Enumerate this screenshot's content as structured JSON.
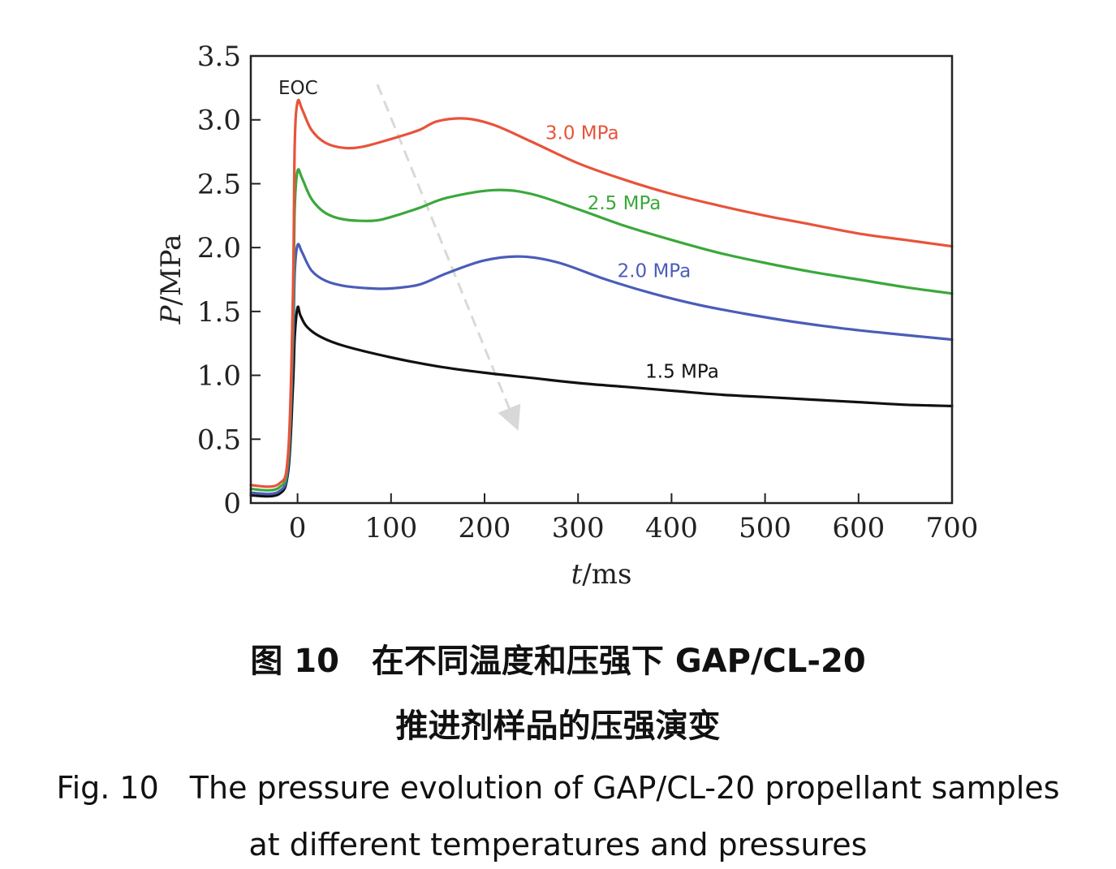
{
  "chart_data": {
    "type": "line",
    "xlabel_var": "t",
    "xlabel_unit": "/ms",
    "ylabel_var": "P",
    "ylabel_unit": "/MPa",
    "xlim": [
      -50,
      700
    ],
    "ylim": [
      0,
      3.5
    ],
    "x_ticks": [
      0,
      100,
      200,
      300,
      400,
      500,
      600,
      700
    ],
    "y_ticks": [
      0,
      0.5,
      1.0,
      1.5,
      2.0,
      2.5,
      3.0,
      3.5
    ],
    "x_tick_labels": [
      "0",
      "100",
      "200",
      "300",
      "400",
      "500",
      "600",
      "700"
    ],
    "y_tick_labels": [
      "0",
      "0.5",
      "1.0",
      "1.5",
      "2.0",
      "2.5",
      "3.0",
      "3.5"
    ],
    "annotation": "EOC",
    "series": [
      {
        "name": "3.0 MPa",
        "color": "#e8533a",
        "x": [
          -50,
          -20,
          -10,
          -5,
          -3,
          0,
          5,
          15,
          30,
          50,
          70,
          100,
          130,
          150,
          180,
          210,
          250,
          300,
          350,
          400,
          450,
          500,
          550,
          600,
          650,
          700
        ],
        "y": [
          0.14,
          0.15,
          0.4,
          1.6,
          2.8,
          3.14,
          3.08,
          2.92,
          2.82,
          2.78,
          2.79,
          2.85,
          2.92,
          2.99,
          3.01,
          2.96,
          2.83,
          2.66,
          2.53,
          2.42,
          2.33,
          2.25,
          2.18,
          2.11,
          2.06,
          2.01
        ]
      },
      {
        "name": "2.5 MPa",
        "color": "#3aa83a",
        "x": [
          -50,
          -20,
          -10,
          -5,
          -3,
          0,
          5,
          15,
          30,
          50,
          80,
          100,
          130,
          160,
          210,
          250,
          300,
          350,
          400,
          450,
          500,
          550,
          600,
          650,
          700
        ],
        "y": [
          0.11,
          0.12,
          0.35,
          1.4,
          2.3,
          2.6,
          2.54,
          2.38,
          2.27,
          2.22,
          2.21,
          2.24,
          2.31,
          2.39,
          2.45,
          2.42,
          2.3,
          2.17,
          2.06,
          1.96,
          1.88,
          1.81,
          1.75,
          1.69,
          1.64
        ]
      },
      {
        "name": "2.0 MPa",
        "color": "#4a5db8",
        "x": [
          -50,
          -20,
          -10,
          -5,
          -3,
          0,
          5,
          15,
          30,
          50,
          80,
          100,
          130,
          160,
          200,
          240,
          280,
          330,
          380,
          430,
          480,
          530,
          580,
          630,
          700
        ],
        "y": [
          0.08,
          0.09,
          0.3,
          1.2,
          1.8,
          2.02,
          1.96,
          1.82,
          1.74,
          1.7,
          1.68,
          1.68,
          1.71,
          1.8,
          1.9,
          1.93,
          1.88,
          1.75,
          1.64,
          1.55,
          1.48,
          1.42,
          1.37,
          1.33,
          1.28
        ]
      },
      {
        "name": "1.5 MPa",
        "color": "#111111",
        "x": [
          -50,
          -20,
          -10,
          -5,
          -3,
          0,
          3,
          10,
          25,
          50,
          100,
          150,
          200,
          250,
          300,
          350,
          400,
          450,
          500,
          550,
          600,
          650,
          700
        ],
        "y": [
          0.06,
          0.07,
          0.25,
          0.9,
          1.3,
          1.53,
          1.47,
          1.38,
          1.3,
          1.23,
          1.14,
          1.07,
          1.02,
          0.98,
          0.94,
          0.91,
          0.88,
          0.85,
          0.83,
          0.81,
          0.79,
          0.77,
          0.76
        ]
      }
    ]
  },
  "caption": {
    "zh_line1": "图 10　在不同温度和压强下 GAP/CL-20",
    "zh_line2": "推进剂样品的压强演变",
    "en_line1": "Fig. 10　The pressure evolution of GAP/CL-20 propellant samples",
    "en_line2": "at different temperatures and pressures"
  }
}
